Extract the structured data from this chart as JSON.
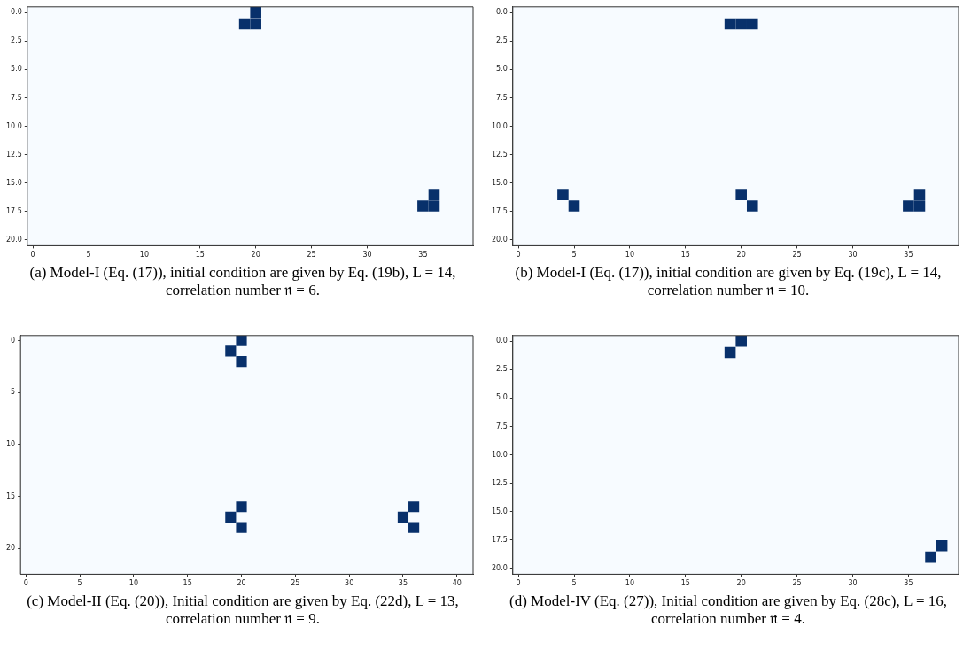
{
  "chart_data": [
    {
      "type": "scatter",
      "title": "(a) Model-I (Eq. (17)), initial condition are given by Eq. (19b), L = 14, correlation number 𝔫 = 6.",
      "marker": "square",
      "grid": false,
      "xlim": [
        -0.5,
        39.5
      ],
      "ylim": [
        20.5,
        -0.5
      ],
      "xticks": [
        0,
        5,
        10,
        15,
        20,
        25,
        30,
        35
      ],
      "yticks": [
        {
          "value": 0,
          "label": "0.0"
        },
        {
          "value": 2.5,
          "label": "2.5"
        },
        {
          "value": 5,
          "label": "5.0"
        },
        {
          "value": 7.5,
          "label": "7.5"
        },
        {
          "value": 10,
          "label": "10.0"
        },
        {
          "value": 12.5,
          "label": "12.5"
        },
        {
          "value": 15,
          "label": "15.0"
        },
        {
          "value": 17.5,
          "label": "17.5"
        },
        {
          "value": 20,
          "label": "20.0"
        }
      ],
      "series": [
        {
          "color": "#08306b",
          "x": [
            20,
            19,
            20,
            36,
            35,
            36
          ],
          "values": [
            0,
            1,
            1,
            16,
            17,
            17
          ]
        }
      ]
    },
    {
      "type": "scatter",
      "title": "(b) Model-I (Eq. (17)), initial condition are given by Eq. (19c), L = 14, correlation number 𝔫 = 10.",
      "marker": "square",
      "grid": false,
      "xlim": [
        -0.5,
        39.5
      ],
      "ylim": [
        20.5,
        -0.5
      ],
      "xticks": [
        0,
        5,
        10,
        15,
        20,
        25,
        30,
        35
      ],
      "yticks": [
        {
          "value": 0,
          "label": "0.0"
        },
        {
          "value": 2.5,
          "label": "2.5"
        },
        {
          "value": 5,
          "label": "5.0"
        },
        {
          "value": 7.5,
          "label": "7.5"
        },
        {
          "value": 10,
          "label": "10.0"
        },
        {
          "value": 12.5,
          "label": "12.5"
        },
        {
          "value": 15,
          "label": "15.0"
        },
        {
          "value": 17.5,
          "label": "17.5"
        },
        {
          "value": 20,
          "label": "20.0"
        }
      ],
      "series": [
        {
          "color": "#08306b",
          "x": [
            19,
            20,
            21,
            4,
            5,
            20,
            21,
            36,
            35,
            36
          ],
          "values": [
            1,
            1,
            1,
            16,
            17,
            16,
            17,
            16,
            17,
            17
          ]
        }
      ]
    },
    {
      "type": "scatter",
      "title": "(c) Model-II (Eq. (20)), Initial condition are given by Eq. (22d), L = 13, correlation number 𝔫 = 9.",
      "marker": "square",
      "grid": false,
      "xlim": [
        -0.5,
        41.5
      ],
      "ylim": [
        22.5,
        -0.5
      ],
      "xticks": [
        0,
        5,
        10,
        15,
        20,
        25,
        30,
        35,
        40
      ],
      "yticks": [
        0,
        5,
        10,
        15,
        20
      ],
      "series": [
        {
          "color": "#08306b",
          "x": [
            20,
            19,
            20,
            20,
            19,
            20,
            36,
            35,
            36
          ],
          "values": [
            0,
            1,
            2,
            16,
            17,
            18,
            16,
            17,
            18
          ]
        }
      ]
    },
    {
      "type": "scatter",
      "title": "(d) Model-IV (Eq. (27)), Initial condition are given by Eq. (28c), L = 16, correlation number 𝔫 = 4.",
      "marker": "square",
      "grid": false,
      "xlim": [
        -0.5,
        39.5
      ],
      "ylim": [
        20.5,
        -0.5
      ],
      "xticks": [
        0,
        5,
        10,
        15,
        20,
        25,
        30,
        35
      ],
      "yticks": [
        {
          "value": 0,
          "label": "0.0"
        },
        {
          "value": 2.5,
          "label": "2.5"
        },
        {
          "value": 5,
          "label": "5.0"
        },
        {
          "value": 7.5,
          "label": "7.5"
        },
        {
          "value": 10,
          "label": "10.0"
        },
        {
          "value": 12.5,
          "label": "12.5"
        },
        {
          "value": 15,
          "label": "15.0"
        },
        {
          "value": 17.5,
          "label": "17.5"
        },
        {
          "value": 20,
          "label": "20.0"
        }
      ],
      "series": [
        {
          "color": "#08306b",
          "x": [
            20,
            19,
            38,
            37
          ],
          "values": [
            0,
            1,
            18,
            19
          ]
        }
      ]
    }
  ]
}
